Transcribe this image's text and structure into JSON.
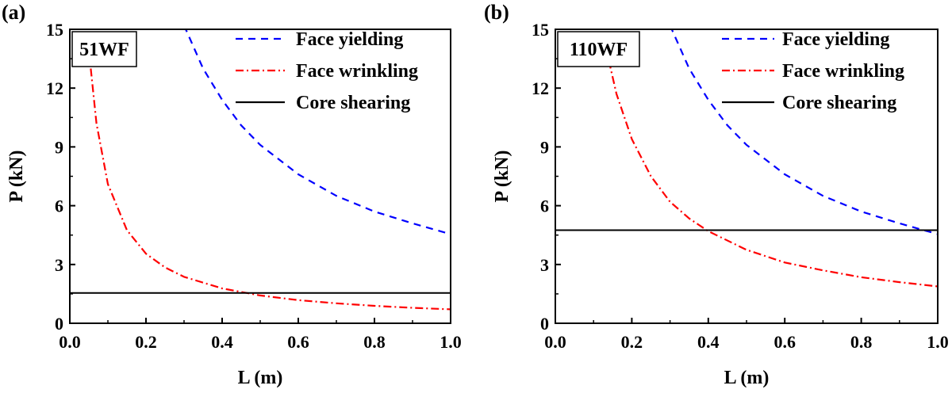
{
  "chart_data": [
    {
      "type": "line",
      "panel_label": "(a)",
      "sample_label": "51WF",
      "xlabel": "L (m)",
      "ylabel": "P (kN)",
      "xlim": [
        0.0,
        1.0
      ],
      "ylim": [
        0,
        15
      ],
      "xticks": [
        "0.0",
        "0.2",
        "0.4",
        "0.6",
        "0.8",
        "1.0"
      ],
      "yticks": [
        "0",
        "3",
        "6",
        "9",
        "12",
        "15"
      ],
      "legend_position": "top-right",
      "series": [
        {
          "name": "Face yielding",
          "style": "dashed",
          "color": "#0000ff",
          "x": [
            0.3,
            0.35,
            0.4,
            0.45,
            0.5,
            0.6,
            0.7,
            0.8,
            0.9,
            1.0
          ],
          "y": [
            15.2,
            13.0,
            11.4,
            10.1,
            9.1,
            7.6,
            6.5,
            5.7,
            5.1,
            4.55
          ]
        },
        {
          "name": "Face wrinkling",
          "style": "dashdot",
          "color": "#ff0000",
          "x": [
            0.055,
            0.07,
            0.1,
            0.15,
            0.2,
            0.25,
            0.3,
            0.4,
            0.5,
            0.6,
            0.7,
            0.8,
            0.9,
            1.0
          ],
          "y": [
            13.0,
            10.2,
            7.1,
            4.75,
            3.55,
            2.85,
            2.37,
            1.78,
            1.42,
            1.18,
            1.02,
            0.89,
            0.79,
            0.71
          ]
        },
        {
          "name": "Core shearing",
          "style": "solid",
          "color": "#000000",
          "x": [
            0.0,
            1.0
          ],
          "y": [
            1.55,
            1.55
          ]
        }
      ]
    },
    {
      "type": "line",
      "panel_label": "(b)",
      "sample_label": "110WF",
      "xlabel": "L (m)",
      "ylabel": "P (kN)",
      "xlim": [
        0.0,
        1.0
      ],
      "ylim": [
        0,
        15
      ],
      "xticks": [
        "0.0",
        "0.2",
        "0.4",
        "0.6",
        "0.8",
        "1.0"
      ],
      "yticks": [
        "0",
        "3",
        "6",
        "9",
        "12",
        "15"
      ],
      "legend_position": "top-right",
      "series": [
        {
          "name": "Face yielding",
          "style": "dashed",
          "color": "#0000ff",
          "x": [
            0.3,
            0.35,
            0.4,
            0.45,
            0.5,
            0.6,
            0.7,
            0.8,
            0.9,
            1.0
          ],
          "y": [
            15.2,
            13.0,
            11.4,
            10.1,
            9.1,
            7.6,
            6.5,
            5.7,
            5.1,
            4.55
          ]
        },
        {
          "name": "Face wrinkling",
          "style": "dashdot",
          "color": "#ff0000",
          "x": [
            0.14,
            0.16,
            0.2,
            0.25,
            0.3,
            0.35,
            0.4,
            0.5,
            0.6,
            0.7,
            0.8,
            0.9,
            1.0
          ],
          "y": [
            13.4,
            11.7,
            9.4,
            7.5,
            6.2,
            5.35,
            4.7,
            3.75,
            3.1,
            2.7,
            2.35,
            2.1,
            1.88
          ]
        },
        {
          "name": "Core shearing",
          "style": "solid",
          "color": "#000000",
          "x": [
            0.0,
            1.0
          ],
          "y": [
            4.75,
            4.75
          ]
        }
      ]
    }
  ]
}
